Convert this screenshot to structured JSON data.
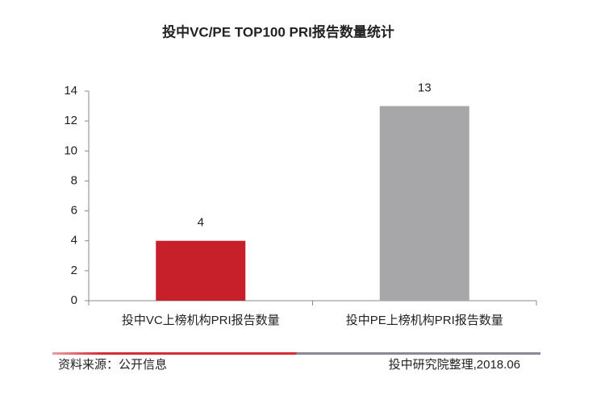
{
  "chart_data": {
    "type": "bar",
    "title": "投中VC/PE TOP100 PRI报告数量统计",
    "categories": [
      "投中VC上榜机构PRI报告数量",
      "投中PE上榜机构PRI报告数量"
    ],
    "values": [
      4,
      13
    ],
    "colors": [
      "#c8202a",
      "#a7a6a8"
    ],
    "ylim": [
      0,
      14
    ],
    "yticks": [
      0,
      2,
      4,
      6,
      8,
      10,
      12,
      14
    ],
    "grid": false,
    "source": "资料来源：公开信息",
    "note": "投中研究院整理,2018.06"
  }
}
